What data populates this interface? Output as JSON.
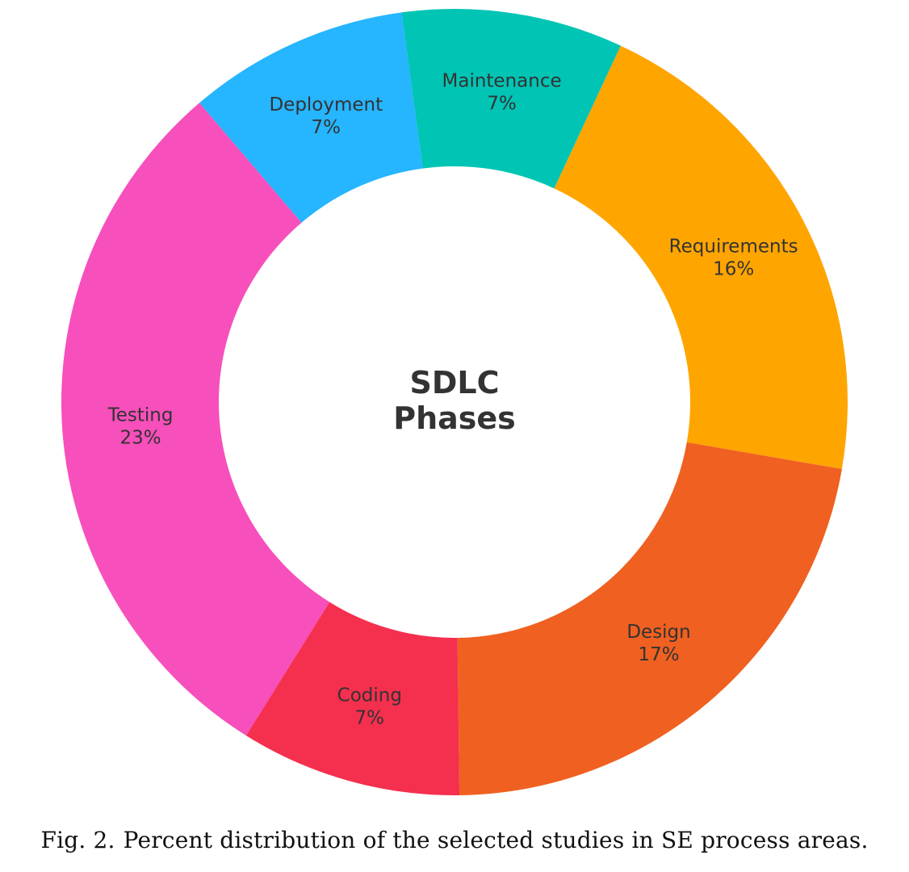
{
  "chart_data": {
    "type": "pie",
    "variant": "donut",
    "title": "SDLC Phases",
    "title_lines": [
      "SDLC",
      "Phases"
    ],
    "start_angle_deg": 25,
    "direction": "clockwise",
    "slices": [
      {
        "name": "Requirements",
        "value": 16,
        "label": "16%",
        "color": "#FFA500"
      },
      {
        "name": "Design",
        "value": 17,
        "label": "17%",
        "color": "#F06020"
      },
      {
        "name": "Coding",
        "value": 7,
        "label": "7%",
        "color": "#F52F4E"
      },
      {
        "name": "Testing",
        "value": 23,
        "label": "23%",
        "color": "#F74FBB"
      },
      {
        "name": "Deployment",
        "value": 7,
        "label": "7%",
        "color": "#26B5FF"
      },
      {
        "name": "Maintenance",
        "value": 7,
        "label": "7%",
        "color": "#00C4B4"
      }
    ]
  },
  "caption": {
    "figure_number": "Fig. 2.",
    "text": "Percent distribution of the selected studies in SE process areas."
  }
}
